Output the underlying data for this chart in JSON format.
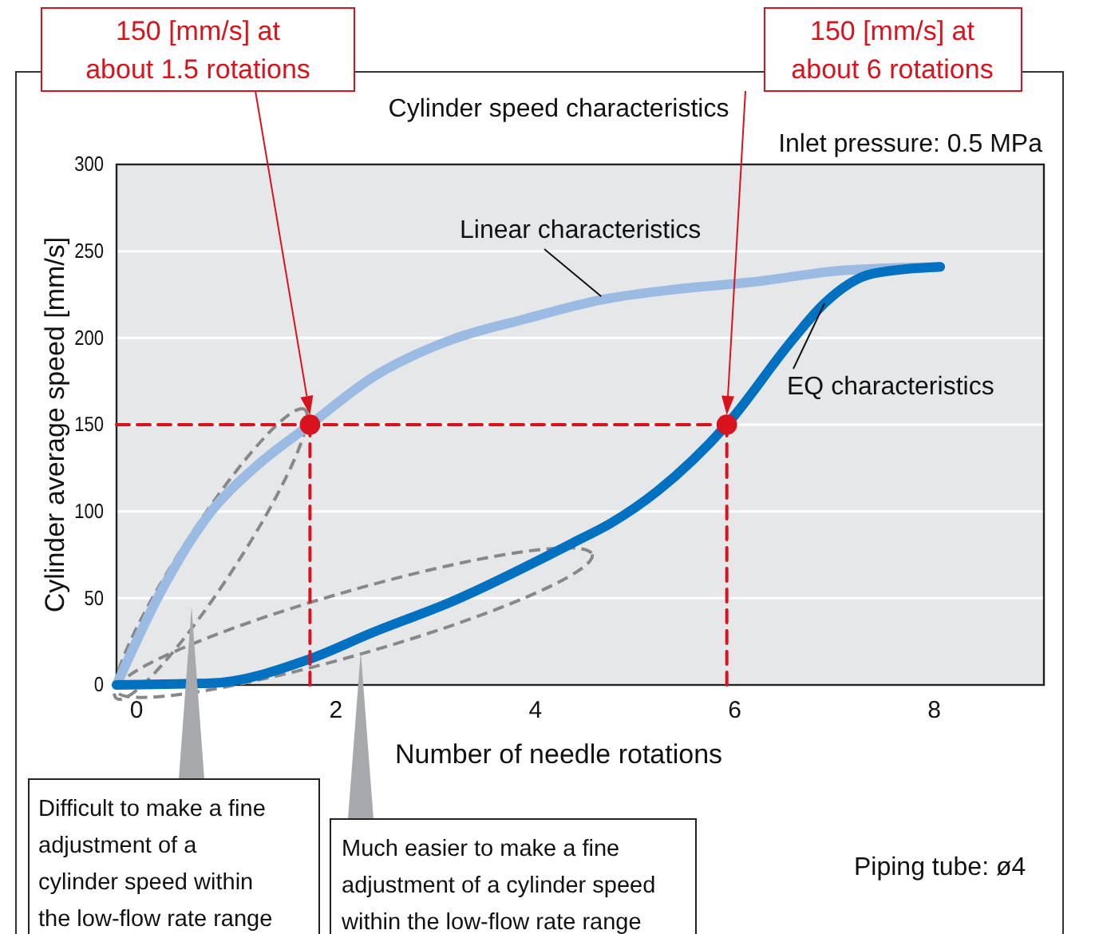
{
  "chart_data": {
    "type": "line",
    "title": "Cylinder speed characteristics",
    "xlabel": "Number of needle rotations",
    "ylabel": "Cylinder average speed [mm/s]",
    "xlim": [
      -0.2,
      9.1
    ],
    "ylim": [
      0,
      300
    ],
    "xticks": [
      0,
      2,
      4,
      6,
      8
    ],
    "yticks": [
      0,
      50,
      100,
      150,
      200,
      250,
      300
    ],
    "grid": "y",
    "marker": "none",
    "line_style": "solid",
    "series": [
      {
        "color": "#9bbbe3",
        "x": [
          -0.2,
          0.22,
          0.75,
          1.18,
          1.74,
          2.36,
          3.16,
          3.9,
          4.66,
          5.4,
          6.14,
          7.1,
          8.06
        ],
        "values": [
          0,
          51,
          100,
          125,
          150,
          177,
          199,
          211,
          222,
          228,
          232,
          239,
          241
        ]
      },
      {
        "color": "#0070c0",
        "x": [
          -0.2,
          0.75,
          1.74,
          2.36,
          3.16,
          4.38,
          4.75,
          5.23,
          5.92,
          6.58,
          6.9,
          7.38,
          8.06
        ],
        "values": [
          0,
          1,
          15,
          30,
          48,
          82,
          93,
          112,
          150,
          199,
          220,
          237,
          241
        ]
      },
      {
        "color": "#d7141e",
        "line_style": "dashed",
        "x": [
          -0.2,
          5.92
        ],
        "values": [
          150,
          150
        ]
      },
      {
        "color": "#d7141e",
        "line_style": "dashed",
        "x": [
          1.74,
          1.74
        ],
        "values": [
          0,
          150
        ]
      },
      {
        "color": "#d7141e",
        "line_style": "dashed",
        "x": [
          5.92,
          5.92
        ],
        "values": [
          0,
          150
        ]
      },
      {
        "type": "scatter",
        "marker": "circle",
        "color": "#d7141e",
        "x": [
          1.74,
          5.92
        ],
        "values": [
          150,
          150
        ]
      }
    ],
    "annotations": [
      "150 [mm/s] at\nabout 1.5 rotations",
      "150 [mm/s] at\nabout 6 rotations",
      {
        "text": "Linear characteristics",
        "x": 4.66,
        "y": 224
      },
      {
        "text": "EQ characteristics",
        "x": 6.9,
        "y": 220
      },
      "Inlet pressure: 0.5 MPa",
      "Difficult to make a fine\nadjustment of a\ncylinder speed within\nthe low-flow rate range",
      "Much easier to make a fine\nadjustment of a cylinder speed\nwithin the low-flow rate range",
      "Piping tube: ø4"
    ]
  }
}
